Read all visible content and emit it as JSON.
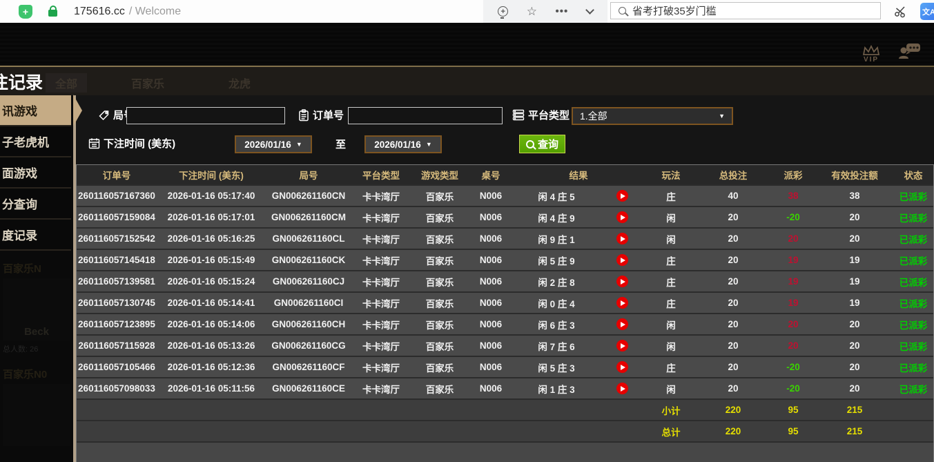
{
  "browser": {
    "url_host": "175616.cc",
    "url_suffix": "/ Welcome",
    "search_text": "省考打破35岁门槛",
    "translate_glyph": "文A"
  },
  "topbar": {
    "vip_label": "VIP"
  },
  "title_bar": {
    "title": "注记录",
    "ghost_tabs": [
      "全部",
      "百家乐",
      "龙虎"
    ]
  },
  "sidebar": {
    "items": [
      {
        "label": "讯游戏",
        "active": true
      },
      {
        "label": "子老虎机",
        "active": false
      },
      {
        "label": "面游戏",
        "active": false
      },
      {
        "label": "分查询",
        "active": false
      },
      {
        "label": "度记录",
        "active": false
      }
    ],
    "ghost": {
      "card1_title": "百家乐N",
      "card1_name": "Beck",
      "card1_count": "总人数: 26",
      "card2_title": "百家乐N0"
    }
  },
  "filters": {
    "round_label": "局号",
    "order_label": "订单号",
    "platform_label": "平台类型",
    "platform_value": "1.全部",
    "bet_time_label": "下注时间 (美东)",
    "date_from": "2026/01/16",
    "to_label": "至",
    "date_to": "2026/01/16",
    "query_label": "查询"
  },
  "table": {
    "columns": [
      "订单号",
      "下注时间 (美东)",
      "局号",
      "平台类型",
      "游戏类型",
      "桌号",
      "结果",
      "玩法",
      "总投注",
      "派彩",
      "有效投注额",
      "状态"
    ],
    "rows": [
      {
        "order": "260116057167360",
        "time": "2026-01-16 05:17:40",
        "round": "GN006261160CN",
        "platform": "卡卡湾厅",
        "game": "百家乐",
        "table_no": "N006",
        "result": "闲 4 庄 5",
        "bet": "庄",
        "total": "40",
        "payout": "38",
        "payout_color": "win",
        "valid": "38",
        "status": "已派彩"
      },
      {
        "order": "260116057159084",
        "time": "2026-01-16 05:17:01",
        "round": "GN006261160CM",
        "platform": "卡卡湾厅",
        "game": "百家乐",
        "table_no": "N006",
        "result": "闲 4 庄 9",
        "bet": "闲",
        "total": "20",
        "payout": "-20",
        "payout_color": "loss",
        "valid": "20",
        "status": "已派彩"
      },
      {
        "order": "260116057152542",
        "time": "2026-01-16 05:16:25",
        "round": "GN006261160CL",
        "platform": "卡卡湾厅",
        "game": "百家乐",
        "table_no": "N006",
        "result": "闲 9 庄 1",
        "bet": "闲",
        "total": "20",
        "payout": "20",
        "payout_color": "win",
        "valid": "20",
        "status": "已派彩"
      },
      {
        "order": "260116057145418",
        "time": "2026-01-16 05:15:49",
        "round": "GN006261160CK",
        "platform": "卡卡湾厅",
        "game": "百家乐",
        "table_no": "N006",
        "result": "闲 5 庄 9",
        "bet": "庄",
        "total": "20",
        "payout": "19",
        "payout_color": "win",
        "valid": "19",
        "status": "已派彩"
      },
      {
        "order": "260116057139581",
        "time": "2026-01-16 05:15:24",
        "round": "GN006261160CJ",
        "platform": "卡卡湾厅",
        "game": "百家乐",
        "table_no": "N006",
        "result": "闲 2 庄 8",
        "bet": "庄",
        "total": "20",
        "payout": "19",
        "payout_color": "win",
        "valid": "19",
        "status": "已派彩"
      },
      {
        "order": "260116057130745",
        "time": "2026-01-16 05:14:41",
        "round": "GN006261160CI",
        "platform": "卡卡湾厅",
        "game": "百家乐",
        "table_no": "N006",
        "result": "闲 0 庄 4",
        "bet": "庄",
        "total": "20",
        "payout": "19",
        "payout_color": "win",
        "valid": "19",
        "status": "已派彩"
      },
      {
        "order": "260116057123895",
        "time": "2026-01-16 05:14:06",
        "round": "GN006261160CH",
        "platform": "卡卡湾厅",
        "game": "百家乐",
        "table_no": "N006",
        "result": "闲 6 庄 3",
        "bet": "闲",
        "total": "20",
        "payout": "20",
        "payout_color": "win",
        "valid": "20",
        "status": "已派彩"
      },
      {
        "order": "260116057115928",
        "time": "2026-01-16 05:13:26",
        "round": "GN006261160CG",
        "platform": "卡卡湾厅",
        "game": "百家乐",
        "table_no": "N006",
        "result": "闲 7 庄 6",
        "bet": "闲",
        "total": "20",
        "payout": "20",
        "payout_color": "win",
        "valid": "20",
        "status": "已派彩"
      },
      {
        "order": "260116057105466",
        "time": "2026-01-16 05:12:36",
        "round": "GN006261160CF",
        "platform": "卡卡湾厅",
        "game": "百家乐",
        "table_no": "N006",
        "result": "闲 5 庄 3",
        "bet": "庄",
        "total": "20",
        "payout": "-20",
        "payout_color": "loss",
        "valid": "20",
        "status": "已派彩"
      },
      {
        "order": "260116057098033",
        "time": "2026-01-16 05:11:56",
        "round": "GN006261160CE",
        "platform": "卡卡湾厅",
        "game": "百家乐",
        "table_no": "N006",
        "result": "闲 1 庄 3",
        "bet": "闲",
        "total": "20",
        "payout": "-20",
        "payout_color": "loss",
        "valid": "20",
        "status": "已派彩"
      }
    ],
    "subtotal": {
      "label": "小计",
      "total": "220",
      "payout": "95",
      "valid": "215"
    },
    "grandtotal": {
      "label": "总计",
      "total": "220",
      "payout": "95",
      "valid": "215"
    }
  },
  "colors": {
    "accent_gold": "#d6ba7c",
    "active_tab_tan": "#c5ab85",
    "payout_win_red": "#c01030",
    "payout_loss_green": "#3ad400",
    "status_paid_green": "#00cf00",
    "summary_yellow": "#e6df00",
    "query_button_green": "#56a700"
  }
}
